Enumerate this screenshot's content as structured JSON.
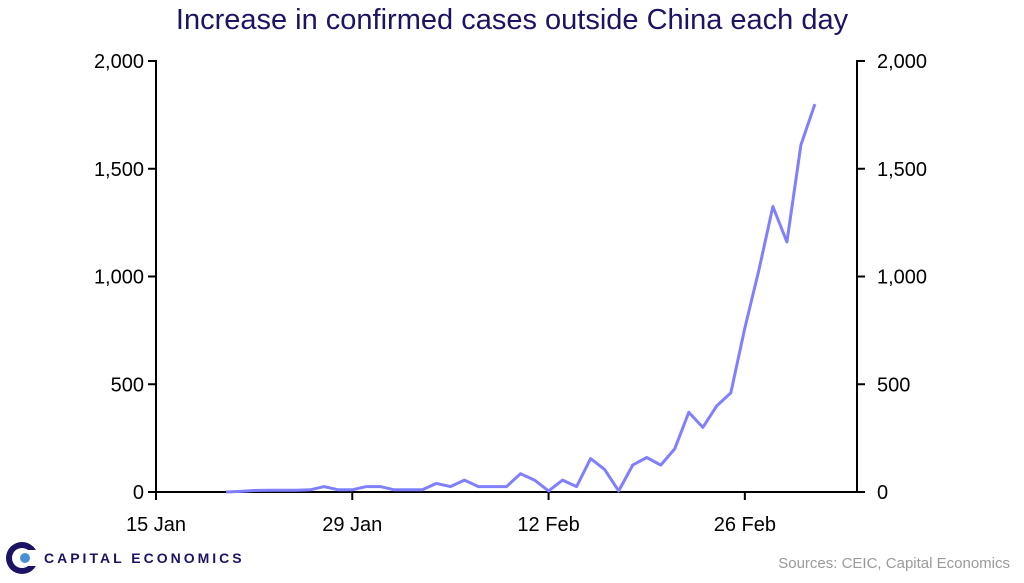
{
  "title": "Increase in confirmed cases outside China each day",
  "source": "Sources: CEIC, Capital Economics",
  "logo": {
    "text": "CAPITAL ECONOMICS",
    "icon": "capital-economics-logo-icon",
    "color": "#1b1464"
  },
  "chart_data": {
    "type": "line",
    "title": "Increase in confirmed cases outside China each day",
    "xlabel": "",
    "ylabel": "",
    "x_ticks": [
      "15 Jan",
      "29 Jan",
      "12 Feb",
      "26 Feb"
    ],
    "y_ticks": [
      "0",
      "500",
      "1,000",
      "1,500",
      "2,000"
    ],
    "y2_ticks": [
      "0",
      "500",
      "1,000",
      "1,500",
      "2,000"
    ],
    "ylim": [
      0,
      2000
    ],
    "xlim": [
      "2020-01-15",
      "2020-03-05"
    ],
    "grid": false,
    "line_color": "#8080ff",
    "series": [
      {
        "x": [
          "2020-01-20",
          "2020-01-21",
          "2020-01-22",
          "2020-01-23",
          "2020-01-24",
          "2020-01-25",
          "2020-01-26",
          "2020-01-27",
          "2020-01-28",
          "2020-01-29",
          "2020-01-30",
          "2020-01-31",
          "2020-02-01",
          "2020-02-02",
          "2020-02-03",
          "2020-02-04",
          "2020-02-05",
          "2020-02-06",
          "2020-02-07",
          "2020-02-08",
          "2020-02-09",
          "2020-02-10",
          "2020-02-11",
          "2020-02-12",
          "2020-02-13",
          "2020-02-14",
          "2020-02-15",
          "2020-02-16",
          "2020-02-17",
          "2020-02-18",
          "2020-02-19",
          "2020-02-20",
          "2020-02-21",
          "2020-02-22",
          "2020-02-23",
          "2020-02-24",
          "2020-02-25",
          "2020-02-26",
          "2020-02-27",
          "2020-02-28",
          "2020-02-29",
          "2020-03-01",
          "2020-03-02"
        ],
        "values": [
          0,
          3,
          7,
          8,
          8,
          8,
          10,
          25,
          10,
          10,
          25,
          25,
          10,
          10,
          10,
          40,
          25,
          55,
          25,
          25,
          25,
          85,
          55,
          5,
          55,
          25,
          155,
          105,
          5,
          125,
          160,
          125,
          200,
          370,
          300,
          400,
          460,
          760,
          1030,
          1325,
          1160,
          1610,
          1800
        ]
      }
    ]
  }
}
